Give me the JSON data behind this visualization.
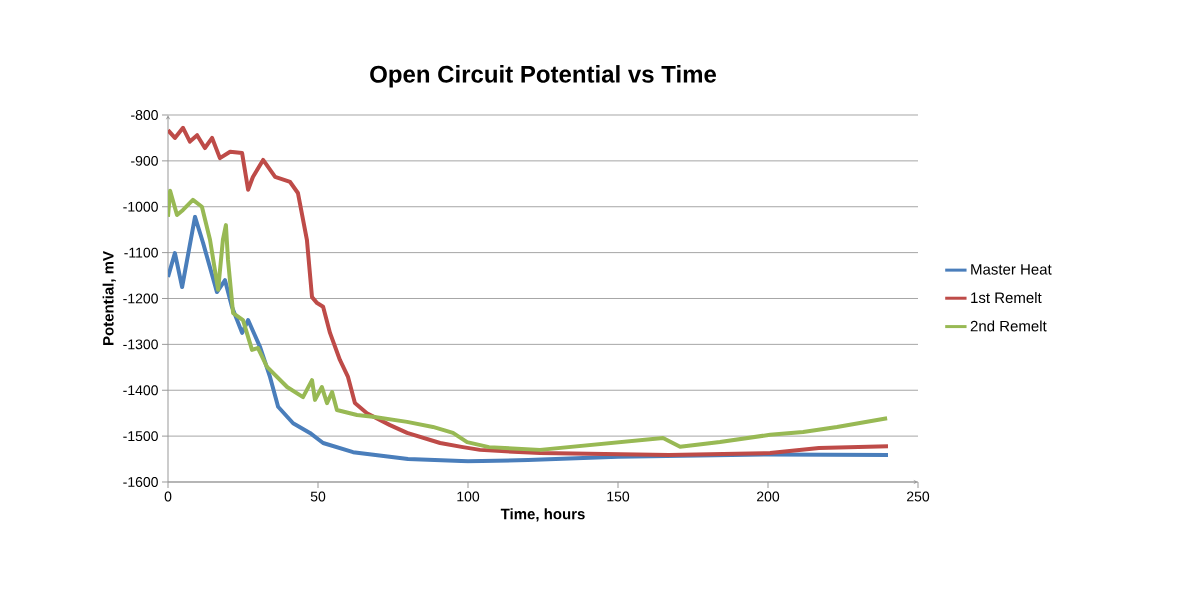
{
  "chart_data": {
    "type": "line",
    "title": "Open Circuit Potential vs Time",
    "xlabel": "Time, hours",
    "ylabel": "Potential, mV",
    "xlim": [
      0,
      250
    ],
    "xticks": [
      0,
      50,
      100,
      150,
      200,
      250
    ],
    "ylim": [
      -1600,
      -800
    ],
    "yticks": [
      -1600,
      -1500,
      -1400,
      -1300,
      -1200,
      -1100,
      -1000,
      -900,
      -800
    ],
    "grid": "y",
    "legend": "right",
    "line_style": "solid",
    "series": [
      {
        "name": "Master Heat",
        "color": "#4a7ebb",
        "x": [
          0,
          2.3,
          4.7,
          9,
          11.7,
          16.3,
          19,
          21.3,
          24.7,
          26.7,
          30.7,
          34,
          36.7,
          41.7,
          47.3,
          51.7,
          61.7,
          80,
          100,
          120,
          150,
          200,
          240
        ],
        "values": [
          -1153,
          -1101,
          -1175,
          -1022,
          -1079,
          -1186,
          -1160,
          -1218,
          -1275,
          -1247,
          -1306,
          -1371,
          -1436,
          -1472,
          -1493,
          -1515,
          -1535,
          -1550,
          -1555,
          -1552,
          -1545,
          -1540,
          -1541
        ]
      },
      {
        "name": "1st Remelt",
        "color": "#be4b48",
        "x": [
          0,
          2.3,
          5,
          7.3,
          9.7,
          12.3,
          14.7,
          17.3,
          20.7,
          24.7,
          26.7,
          28.3,
          31.7,
          35.7,
          40.7,
          43.3,
          46.3,
          48,
          49.7,
          51.7,
          54,
          57.3,
          60,
          62.3,
          66.3,
          74,
          79.7,
          90.7,
          98.3,
          104,
          124,
          167,
          200.7,
          217,
          240
        ],
        "values": [
          -833,
          -850,
          -828,
          -858,
          -844,
          -872,
          -850,
          -894,
          -880,
          -883,
          -963,
          -935,
          -898,
          -935,
          -946,
          -970,
          -1072,
          -1197,
          -1210,
          -1218,
          -1275,
          -1334,
          -1371,
          -1428,
          -1450,
          -1476,
          -1493,
          -1515,
          -1524,
          -1530,
          -1537,
          -1541,
          -1537,
          -1526,
          -1522
        ]
      },
      {
        "name": "2nd Remelt",
        "color": "#98b954",
        "x": [
          0,
          0.7,
          3,
          5,
          8.3,
          11.3,
          14,
          16.7,
          18.3,
          19.3,
          20,
          21.7,
          25,
          28,
          30,
          33,
          39.7,
          45,
          48,
          49,
          51.3,
          53,
          54.7,
          56.3,
          63,
          68.3,
          79.7,
          88.3,
          95,
          99.7,
          107,
          124,
          165,
          170.7,
          184,
          200.7,
          211.7,
          223,
          239.7
        ],
        "values": [
          -1022,
          -965,
          -1018,
          -1007,
          -985,
          -1000,
          -1072,
          -1181,
          -1072,
          -1040,
          -1116,
          -1232,
          -1247,
          -1312,
          -1308,
          -1349,
          -1393,
          -1415,
          -1378,
          -1421,
          -1393,
          -1428,
          -1404,
          -1443,
          -1454,
          -1458,
          -1469,
          -1480,
          -1493,
          -1513,
          -1524,
          -1530,
          -1504,
          -1523,
          -1513,
          -1497,
          -1491,
          -1480,
          -1461
        ]
      }
    ]
  }
}
